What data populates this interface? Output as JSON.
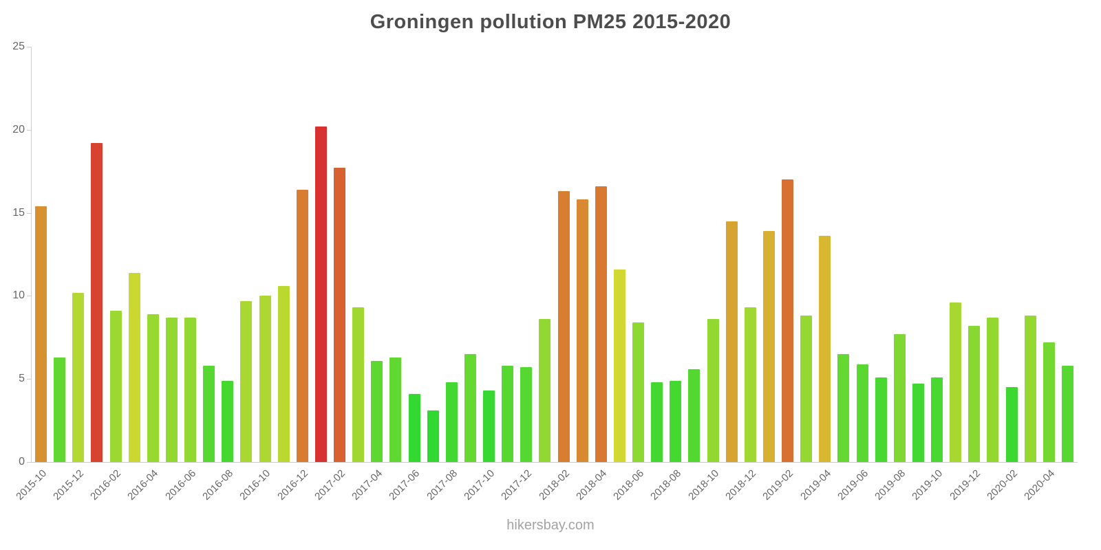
{
  "title": "Groningen pollution PM25 2015-2020",
  "footer": {
    "label": "hikersbay.com"
  },
  "styles": {
    "background": "#ffffff",
    "title_color": "#4d4d4d",
    "axis_color": "#cccccc",
    "tick_label_color": "#666666",
    "footer_color": "#a3a3a3"
  },
  "chart_data": {
    "type": "bar",
    "title": "Groningen pollution PM25 2015-2020",
    "xlabel": "",
    "ylabel": "",
    "ylim": [
      0,
      25
    ],
    "yticks": [
      0,
      5,
      10,
      15,
      20,
      25
    ],
    "grid": false,
    "legend": false,
    "xtick_label_every": 2,
    "categories": [
      "2015-10",
      "2015-11",
      "2015-12",
      "2016-01",
      "2016-02",
      "2016-03",
      "2016-04",
      "2016-05",
      "2016-06",
      "2016-07",
      "2016-08",
      "2016-09",
      "2016-10",
      "2016-11",
      "2016-12",
      "2017-01",
      "2017-02",
      "2017-03",
      "2017-04",
      "2017-05",
      "2017-06",
      "2017-07",
      "2017-08",
      "2017-09",
      "2017-10",
      "2017-11",
      "2017-12",
      "2018-01",
      "2018-02",
      "2018-03",
      "2018-04",
      "2018-05",
      "2018-06",
      "2018-07",
      "2018-08",
      "2018-09",
      "2018-10",
      "2018-11",
      "2018-12",
      "2019-01",
      "2019-02",
      "2019-03",
      "2019-04",
      "2019-05",
      "2019-06",
      "2019-07",
      "2019-08",
      "2019-09",
      "2019-10",
      "2019-11",
      "2019-12",
      "2020-01",
      "2020-02",
      "2020-03",
      "2020-04",
      "2020-05"
    ],
    "values": [
      15.4,
      6.3,
      10.2,
      19.2,
      9.1,
      11.4,
      8.9,
      8.7,
      8.7,
      5.8,
      4.9,
      9.7,
      10.0,
      10.6,
      16.4,
      20.2,
      17.7,
      9.3,
      6.1,
      6.3,
      4.1,
      3.1,
      4.8,
      6.5,
      4.3,
      5.8,
      5.7,
      8.6,
      16.3,
      15.8,
      16.6,
      11.6,
      8.4,
      4.8,
      4.9,
      5.6,
      8.6,
      14.5,
      9.3,
      13.9,
      17.0,
      8.8,
      13.6,
      6.5,
      5.9,
      5.1,
      7.7,
      4.7,
      5.1,
      9.6,
      8.2,
      8.7,
      4.5,
      8.8,
      7.2,
      5.8
    ],
    "color_scale": {
      "description": "bar color varies with value from green (low) to red (high)",
      "low_color": "#3ecf3e",
      "mid_color": "#d2d432",
      "high_color": "#db3927",
      "hue_at_low": 120,
      "hue_at_high": 0,
      "value_at_low_hue": 4,
      "value_at_high_hue": 20,
      "saturation_pct": 68,
      "lightness_pct": 52
    }
  }
}
